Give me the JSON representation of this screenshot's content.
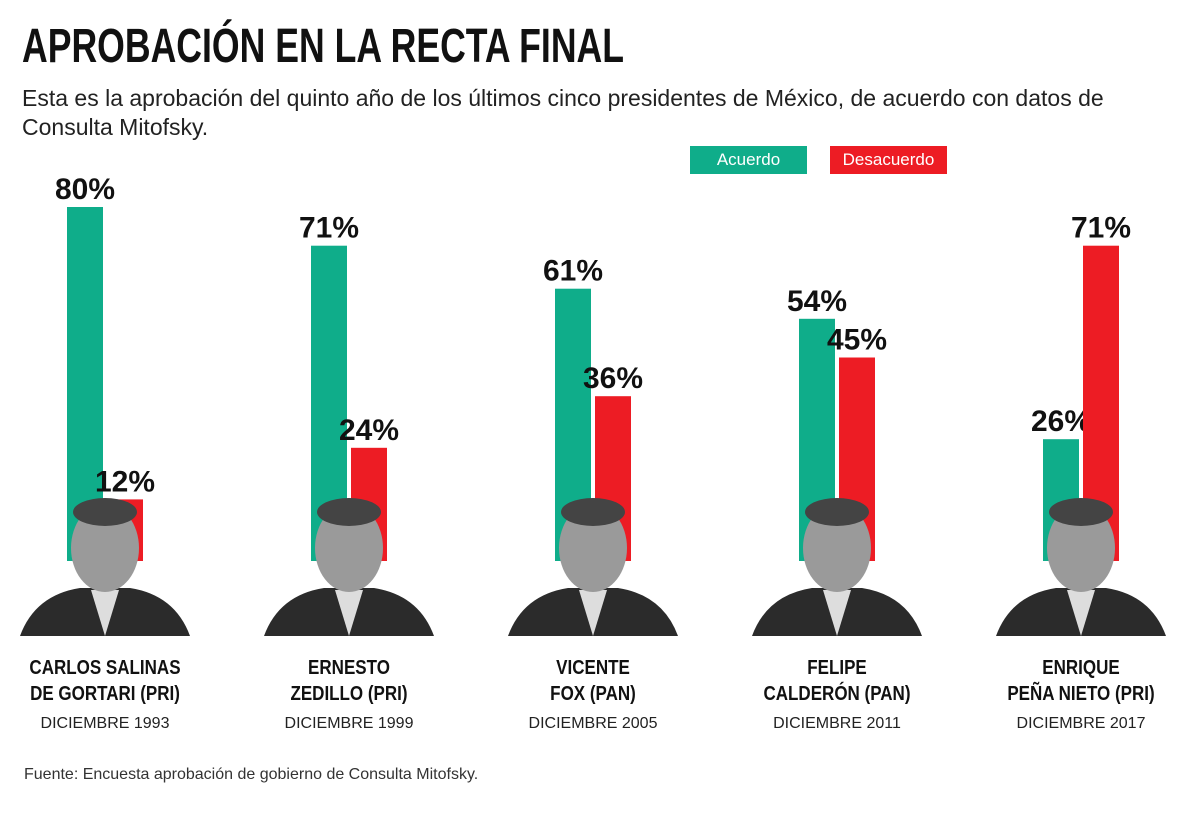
{
  "chart_data": {
    "type": "bar",
    "title": "APROBACIÓN EN LA RECTA FINAL",
    "subtitle": "Esta es la aprobación del quinto año de los últimos cinco presidentes de México, de acuerdo con datos de Consulta Mitofsky.",
    "source": "Fuente: Encuesta aprobación de gobierno de Consulta Mitofsky.",
    "categories": [
      "CARLOS SALINAS\nDE GORTARI (PRI)",
      "ERNESTO\nZEDILLO (PRI)",
      "VICENTE\nFOX (PAN)",
      "FELIPE\nCALDERÓN (PAN)",
      "ENRIQUE\nPEÑA NIETO (PRI)"
    ],
    "dates": [
      "DICIEMBRE 1993",
      "DICIEMBRE 1999",
      "DICIEMBRE 2005",
      "DICIEMBRE 2011",
      "DICIEMBRE 2017"
    ],
    "series": [
      {
        "name": "Acuerdo",
        "color": "#0fad8a",
        "values": [
          80,
          71,
          61,
          54,
          26
        ],
        "value_labels": [
          "80%",
          "71%",
          "61%",
          "54%",
          "26%"
        ]
      },
      {
        "name": "Desacuerdo",
        "color": "#ed1c24",
        "values": [
          12,
          24,
          36,
          45,
          71
        ],
        "value_labels": [
          "12%",
          "24%",
          "36%",
          "45%",
          "71%"
        ]
      }
    ],
    "legend": "top-right"
  }
}
